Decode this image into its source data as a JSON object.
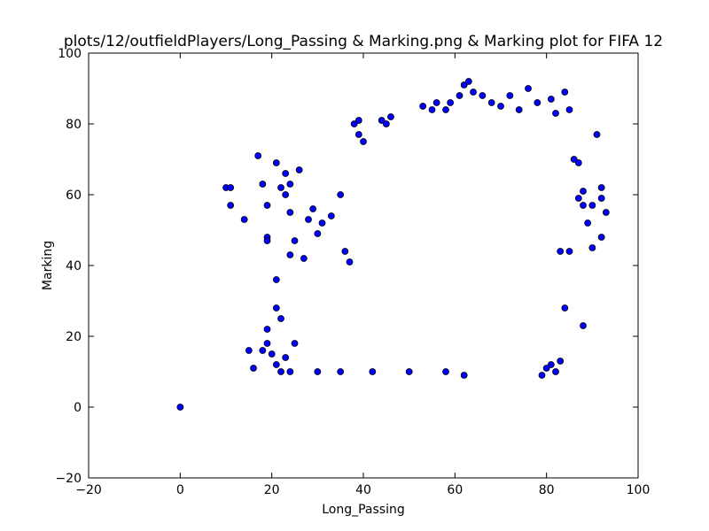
{
  "chart_data": {
    "type": "scatter",
    "title": "plots/12/outfieldPlayers/Long_Passing & Marking.png & Marking plot for FIFA 12",
    "xlabel": "Long_Passing",
    "ylabel": "Marking",
    "xlim": [
      -20,
      100
    ],
    "ylim": [
      -20,
      100
    ],
    "xticks": [
      -20,
      0,
      20,
      40,
      60,
      80,
      100
    ],
    "yticks": [
      -20,
      0,
      20,
      40,
      60,
      80,
      100
    ],
    "xtick_labels": [
      "−20",
      "0",
      "20",
      "40",
      "60",
      "80",
      "100"
    ],
    "ytick_labels": [
      "−20",
      "0",
      "20",
      "40",
      "60",
      "80",
      "100"
    ],
    "grid": false,
    "marker_color": "#0000ff",
    "marker_edge_color": "#000000",
    "series": [
      {
        "points": [
          [
            0,
            0
          ],
          [
            10,
            62
          ],
          [
            11,
            62
          ],
          [
            11,
            57
          ],
          [
            14,
            53
          ],
          [
            17,
            71
          ],
          [
            18,
            63
          ],
          [
            19,
            57
          ],
          [
            19,
            48
          ],
          [
            19,
            47
          ],
          [
            15,
            16
          ],
          [
            16,
            11
          ],
          [
            18,
            16
          ],
          [
            19,
            22
          ],
          [
            19,
            18
          ],
          [
            20,
            15
          ],
          [
            21,
            36
          ],
          [
            21,
            28
          ],
          [
            21,
            69
          ],
          [
            22,
            62
          ],
          [
            23,
            60
          ],
          [
            23,
            66
          ],
          [
            24,
            43
          ],
          [
            24,
            63
          ],
          [
            24,
            55
          ],
          [
            25,
            47
          ],
          [
            26,
            67
          ],
          [
            27,
            42
          ],
          [
            28,
            53
          ],
          [
            29,
            56
          ],
          [
            30,
            49
          ],
          [
            31,
            52
          ],
          [
            33,
            54
          ],
          [
            35,
            60
          ],
          [
            36,
            44
          ],
          [
            37,
            41
          ],
          [
            38,
            80
          ],
          [
            39,
            81
          ],
          [
            39,
            77
          ],
          [
            40,
            75
          ],
          [
            44,
            81
          ],
          [
            45,
            80
          ],
          [
            46,
            82
          ],
          [
            53,
            85
          ],
          [
            55,
            84
          ],
          [
            56,
            86
          ],
          [
            58,
            84
          ],
          [
            59,
            86
          ],
          [
            61,
            88
          ],
          [
            62,
            91
          ],
          [
            63,
            92
          ],
          [
            64,
            89
          ],
          [
            66,
            88
          ],
          [
            68,
            86
          ],
          [
            70,
            85
          ],
          [
            72,
            88
          ],
          [
            74,
            84
          ],
          [
            76,
            90
          ],
          [
            78,
            86
          ],
          [
            81,
            87
          ],
          [
            82,
            83
          ],
          [
            84,
            89
          ],
          [
            85,
            84
          ],
          [
            86,
            70
          ],
          [
            87,
            69
          ],
          [
            87,
            59
          ],
          [
            88,
            61
          ],
          [
            88,
            57
          ],
          [
            88,
            23
          ],
          [
            89,
            52
          ],
          [
            91,
            77
          ],
          [
            92,
            62
          ],
          [
            92,
            59
          ],
          [
            93,
            55
          ],
          [
            92,
            48
          ],
          [
            90,
            45
          ],
          [
            90,
            57
          ],
          [
            85,
            44
          ],
          [
            83,
            44
          ],
          [
            84,
            28
          ],
          [
            83,
            13
          ],
          [
            82,
            10
          ],
          [
            81,
            12
          ],
          [
            80,
            11
          ],
          [
            79,
            9
          ],
          [
            62,
            9
          ],
          [
            58,
            10
          ],
          [
            50,
            10
          ],
          [
            42,
            10
          ],
          [
            35,
            10
          ],
          [
            30,
            10
          ],
          [
            24,
            10
          ],
          [
            22,
            10
          ],
          [
            21,
            12
          ],
          [
            23,
            14
          ],
          [
            25,
            18
          ],
          [
            22,
            25
          ]
        ]
      }
    ]
  }
}
